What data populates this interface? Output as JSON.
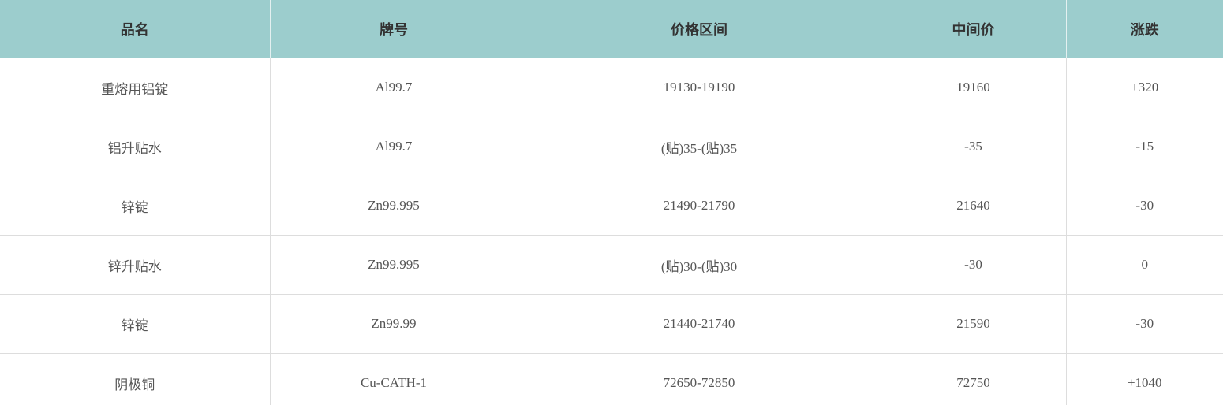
{
  "table": {
    "headers": [
      "品名",
      "牌号",
      "价格区间",
      "中间价",
      "涨跌"
    ],
    "rows": [
      [
        "重熔用铝锭",
        "Al99.7",
        "19130-19190",
        "19160",
        "+320"
      ],
      [
        "铝升贴水",
        "Al99.7",
        "(贴)35-(贴)35",
        "-35",
        "-15"
      ],
      [
        "锌锭",
        "Zn99.995",
        "21490-21790",
        "21640",
        "-30"
      ],
      [
        "锌升贴水",
        "Zn99.995",
        "(贴)30-(贴)30",
        "-30",
        "0"
      ],
      [
        "锌锭",
        "Zn99.99",
        "21440-21740",
        "21590",
        "-30"
      ],
      [
        "阴极铜",
        "Cu-CATH-1",
        "72650-72850",
        "72750",
        "+1040"
      ]
    ]
  }
}
